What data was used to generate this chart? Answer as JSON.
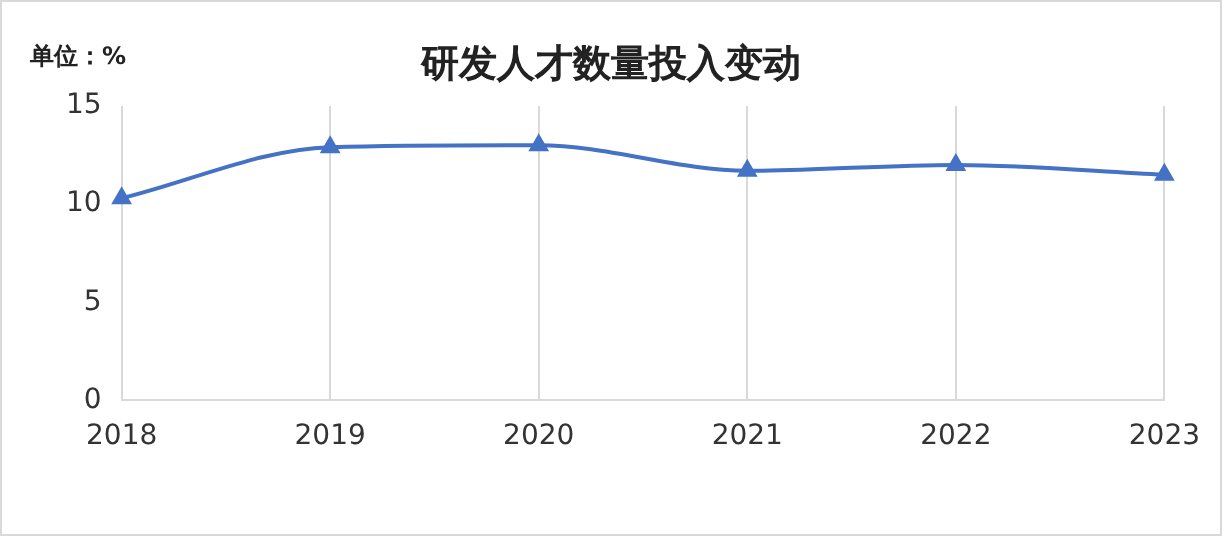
{
  "chart_data": {
    "type": "line",
    "title": "研发人才数量投入变动",
    "ylabel": "单位：%",
    "categories": [
      "2018",
      "2019",
      "2020",
      "2021",
      "2022",
      "2023"
    ],
    "series": [
      {
        "color": "#4472c4",
        "values": [
          10.3,
          12.9,
          13.0,
          11.7,
          12.0,
          11.5
        ]
      }
    ],
    "ylim": [
      0,
      15
    ],
    "yticks": [
      0,
      5,
      10,
      15
    ],
    "grid": "x",
    "legend": false,
    "marker": "triangle",
    "line_style": "solid"
  }
}
